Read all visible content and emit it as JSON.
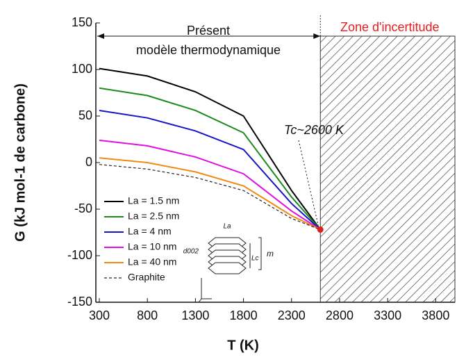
{
  "chart_data": {
    "type": "line",
    "x_label": "T (K)",
    "y_label": "G (kJ mol-1 de carbone)",
    "xlim": [
      300,
      4000
    ],
    "ylim": [
      -150,
      150
    ],
    "xticks": [
      300,
      800,
      1300,
      1800,
      2300,
      2800,
      3300,
      3800
    ],
    "yticks": [
      -150,
      -100,
      -50,
      0,
      50,
      100,
      150
    ],
    "x": [
      300,
      800,
      1300,
      1800,
      2300,
      2600
    ],
    "series": [
      {
        "name": "La = 1.5 nm",
        "color": "#000000",
        "values": [
          101,
          93,
          76,
          50,
          -30,
          -72
        ]
      },
      {
        "name": "La = 2.5 nm",
        "color": "#1a8a1a",
        "values": [
          80,
          72,
          56,
          32,
          -37,
          -72
        ]
      },
      {
        "name": "La = 4 nm",
        "color": "#1515c8",
        "values": [
          56,
          48,
          34,
          14,
          -44,
          -72
        ]
      },
      {
        "name": "La = 10 nm",
        "color": "#e010e0",
        "values": [
          24,
          18,
          6,
          -12,
          -52,
          -72
        ]
      },
      {
        "name": "La = 40 nm",
        "color": "#f08a10",
        "values": [
          5,
          0,
          -10,
          -25,
          -57,
          -72
        ]
      },
      {
        "name": "Graphite",
        "color": "#222222",
        "dashed": true,
        "values": [
          -2,
          -7,
          -16,
          -30,
          -60,
          -72
        ]
      }
    ],
    "legend": "lower-left",
    "annotations": [
      "Présent",
      "modèle thermodynamique",
      "Zone d'incertitude",
      "Tc~2600 K"
    ],
    "inset_labels": [
      "La",
      "d002",
      "Lc",
      "m"
    ],
    "critical_point": {
      "x": 2600,
      "y": -72,
      "color": "#e02020"
    },
    "uncertain_zone": [
      2600,
      4000
    ]
  }
}
